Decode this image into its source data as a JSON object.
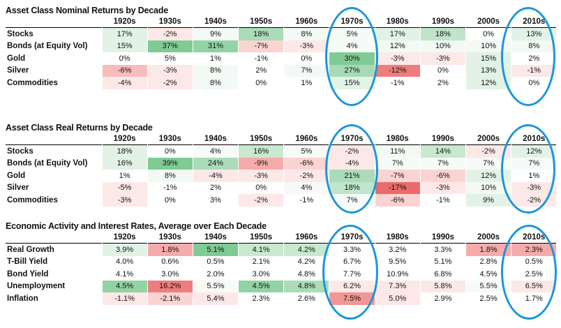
{
  "decades": [
    "1920s",
    "1930s",
    "1940s",
    "1950s",
    "1960s",
    "1970s",
    "1980s",
    "1990s",
    "2000s",
    "2010s"
  ],
  "tables": [
    {
      "title": "Asset Class Nominal Returns by Decade",
      "rows": [
        {
          "label": "Stocks",
          "values": [
            "17%",
            "-2%",
            "9%",
            "18%",
            "8%",
            "5%",
            "17%",
            "18%",
            "0%",
            "13%"
          ],
          "colors": [
            "#e3f2e6",
            "#fde8e8",
            "#f3f9f4",
            "#abdbb8",
            "#f3f9f4",
            "#f7fbf8",
            "#e3f2e6",
            "#c0e5ca",
            "#ffffff",
            "#e3f2e6"
          ]
        },
        {
          "label": "Bonds (at Equity Vol)",
          "values": [
            "15%",
            "37%",
            "31%",
            "-7%",
            "-3%",
            "4%",
            "12%",
            "10%",
            "10%",
            "8%"
          ],
          "colors": [
            "#e3f2e6",
            "#7fcb93",
            "#92d3a3",
            "#fbd3d3",
            "#fde8e8",
            "#f7fbf8",
            "#f3f9f4",
            "#f3f9f4",
            "#f3f9f4",
            "#f3f9f4"
          ]
        },
        {
          "label": "Gold",
          "values": [
            "0%",
            "5%",
            "1%",
            "-1%",
            "0%",
            "30%",
            "-3%",
            "-3%",
            "15%",
            "2%"
          ],
          "colors": [
            "#ffffff",
            "#ffffff",
            "#ffffff",
            "#ffffff",
            "#ffffff",
            "#80cb95",
            "#fde8e8",
            "#fde8e8",
            "#e3f2e6",
            "#ffffff"
          ]
        },
        {
          "label": "Silver",
          "values": [
            "-6%",
            "-3%",
            "8%",
            "2%",
            "7%",
            "27%",
            "-12%",
            "0%",
            "13%",
            "-1%"
          ],
          "colors": [
            "#f8bcbc",
            "#fde8e8",
            "#f3f9f4",
            "#ffffff",
            "#f3f9f4",
            "#a7dab4",
            "#ee7d7d",
            "#ffffff",
            "#e3f2e6",
            "#fde8e8"
          ]
        },
        {
          "label": "Commodities",
          "values": [
            "-4%",
            "-2%",
            "8%",
            "0%",
            "1%",
            "15%",
            "-1%",
            "2%",
            "12%",
            "0%"
          ],
          "colors": [
            "#fde8e8",
            "#fde8e8",
            "#f3f9f4",
            "#ffffff",
            "#ffffff",
            "#e3f2e6",
            "#ffffff",
            "#ffffff",
            "#e3f2e6",
            "#ffffff"
          ]
        }
      ]
    },
    {
      "title": "Asset Class Real Returns by Decade",
      "rows": [
        {
          "label": "Stocks",
          "values": [
            "18%",
            "0%",
            "4%",
            "16%",
            "5%",
            "-2%",
            "11%",
            "14%",
            "-2%",
            "12%"
          ],
          "colors": [
            "#e3f2e6",
            "#ffffff",
            "#f7fbf8",
            "#c8e9d0",
            "#f7fbf8",
            "#fde8e8",
            "#f3f9f4",
            "#c8e9d0",
            "#fde8e8",
            "#e3f2e6"
          ]
        },
        {
          "label": "Bonds (at Equity Vol)",
          "values": [
            "16%",
            "39%",
            "24%",
            "-9%",
            "-6%",
            "-4%",
            "7%",
            "7%",
            "7%",
            "7%"
          ],
          "colors": [
            "#e3f2e6",
            "#7fcb93",
            "#abdbb8",
            "#f6abab",
            "#fbd3d3",
            "#fde8e8",
            "#f7fbf8",
            "#f7fbf8",
            "#f7fbf8",
            "#f7fbf8"
          ]
        },
        {
          "label": "Gold",
          "values": [
            "1%",
            "8%",
            "-4%",
            "-3%",
            "-2%",
            "21%",
            "-7%",
            "-6%",
            "12%",
            "1%"
          ],
          "colors": [
            "#ffffff",
            "#f3f9f4",
            "#fde8e8",
            "#fde8e8",
            "#fde8e8",
            "#abdbb8",
            "#fbd3d3",
            "#fbd3d3",
            "#e3f2e6",
            "#ffffff"
          ]
        },
        {
          "label": "Silver",
          "values": [
            "-5%",
            "-1%",
            "2%",
            "0%",
            "4%",
            "18%",
            "-17%",
            "-3%",
            "10%",
            "-3%"
          ],
          "colors": [
            "#fde8e8",
            "#ffffff",
            "#ffffff",
            "#ffffff",
            "#f7fbf8",
            "#c0e5ca",
            "#ea6b6b",
            "#fde8e8",
            "#f3f9f4",
            "#fde8e8"
          ]
        },
        {
          "label": "Commodities",
          "values": [
            "-3%",
            "0%",
            "3%",
            "-2%",
            "-1%",
            "7%",
            "-6%",
            "-1%",
            "9%",
            "-2%"
          ],
          "colors": [
            "#fde8e8",
            "#ffffff",
            "#ffffff",
            "#fde8e8",
            "#ffffff",
            "#f7fbf8",
            "#fbd3d3",
            "#ffffff",
            "#e3f2e6",
            "#fde8e8"
          ]
        }
      ]
    },
    {
      "title": "Economic Activity and Interest Rates, Average over Each Decade",
      "rows": [
        {
          "label": "Real Growth",
          "values": [
            "3.9%",
            "1.8%",
            "5.1%",
            "4.1%",
            "4.2%",
            "3.3%",
            "3.2%",
            "3.3%",
            "1.8%",
            "2.3%"
          ],
          "colors": [
            "#e3f2e6",
            "#f6abab",
            "#7fcb93",
            "#c8e9d0",
            "#c8e9d0",
            "#ffffff",
            "#ffffff",
            "#ffffff",
            "#f6abab",
            "#f6abab"
          ]
        },
        {
          "label": "T-Bill Yield",
          "values": [
            "4.0%",
            "0.6%",
            "0.5%",
            "2.1%",
            "4.2%",
            "6.7%",
            "9.5%",
            "5.1%",
            "2.8%",
            "0.5%"
          ],
          "colors": [
            "#ffffff",
            "#ffffff",
            "#ffffff",
            "#ffffff",
            "#ffffff",
            "#ffffff",
            "#ffffff",
            "#ffffff",
            "#ffffff",
            "#ffffff"
          ]
        },
        {
          "label": "Bond Yield",
          "values": [
            "4.1%",
            "3.0%",
            "2.0%",
            "3.0%",
            "4.8%",
            "7.7%",
            "10.9%",
            "6.8%",
            "4.5%",
            "2.5%"
          ],
          "colors": [
            "#ffffff",
            "#ffffff",
            "#ffffff",
            "#ffffff",
            "#ffffff",
            "#ffffff",
            "#ffffff",
            "#ffffff",
            "#ffffff",
            "#ffffff"
          ]
        },
        {
          "label": "Unemployment",
          "values": [
            "4.5%",
            "16.2%",
            "5.5%",
            "4.5%",
            "4.8%",
            "6.2%",
            "7.3%",
            "5.8%",
            "5.5%",
            "6.5%"
          ],
          "colors": [
            "#92d3a3",
            "#ee7d7d",
            "#f7fbf8",
            "#92d3a3",
            "#abdbb8",
            "#fde8e8",
            "#fde8e8",
            "#fde8e8",
            "#f7fbf8",
            "#fde8e8"
          ]
        },
        {
          "label": "Inflation",
          "values": [
            "-1.1%",
            "-2.1%",
            "5.4%",
            "2.3%",
            "2.6%",
            "7.5%",
            "5.0%",
            "2.9%",
            "2.5%",
            "1.7%"
          ],
          "colors": [
            "#fde8e8",
            "#fbd3d3",
            "#fde8e8",
            "#ffffff",
            "#ffffff",
            "#f29696",
            "#fde8e8",
            "#ffffff",
            "#ffffff",
            "#ffffff"
          ]
        }
      ]
    }
  ],
  "highlight_color": "#1a96dc"
}
